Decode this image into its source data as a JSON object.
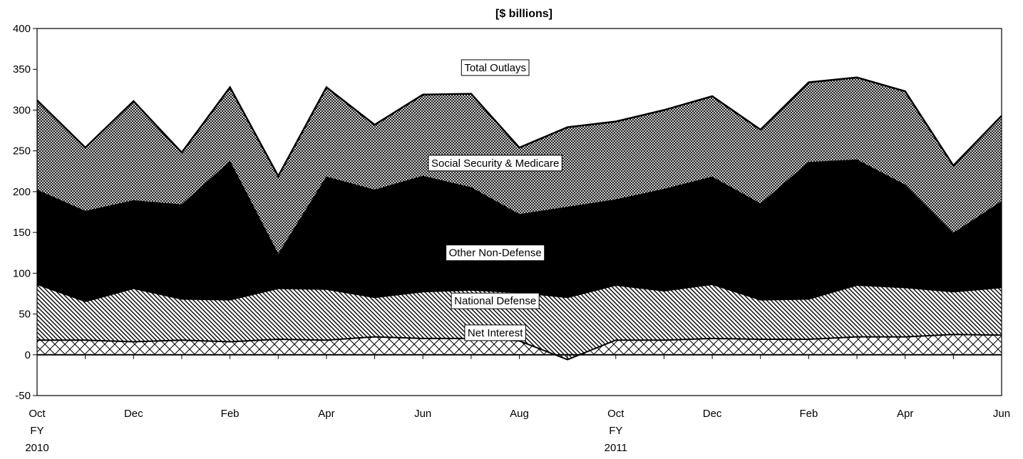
{
  "chart_data": {
    "type": "area",
    "stacked": true,
    "title": "[$ billions]",
    "xlabel": "",
    "ylabel": "",
    "ylim": [
      -50,
      400
    ],
    "yticks": [
      -50,
      0,
      50,
      100,
      150,
      200,
      250,
      300,
      350,
      400
    ],
    "ytick_labels": [
      "-50",
      "0",
      "50",
      "100",
      "150",
      "200",
      "250",
      "300",
      "350",
      "400"
    ],
    "grid": false,
    "legend": "none",
    "x": [
      "Oct 2009",
      "Nov 2009",
      "Dec 2009",
      "Jan 2010",
      "Feb 2010",
      "Mar 2010",
      "Apr 2010",
      "May 2010",
      "Jun 2010",
      "Jul 2010",
      "Aug 2010",
      "Sep 2010",
      "Oct 2010",
      "Nov 2010",
      "Dec 2010",
      "Jan 2011",
      "Feb 2011",
      "Mar 2011",
      "Apr 2011",
      "May 2011",
      "Jun 2011"
    ],
    "xtick_labels": [
      {
        "index": 0,
        "lines": [
          "Oct",
          "FY",
          "2010"
        ]
      },
      {
        "index": 2,
        "lines": [
          "Dec"
        ]
      },
      {
        "index": 4,
        "lines": [
          "Feb"
        ]
      },
      {
        "index": 6,
        "lines": [
          "Apr"
        ]
      },
      {
        "index": 8,
        "lines": [
          "Jun"
        ]
      },
      {
        "index": 10,
        "lines": [
          "Aug"
        ]
      },
      {
        "index": 12,
        "lines": [
          "Oct",
          "FY",
          "2011"
        ]
      },
      {
        "index": 14,
        "lines": [
          "Dec"
        ]
      },
      {
        "index": 16,
        "lines": [
          "Feb"
        ]
      },
      {
        "index": 18,
        "lines": [
          "Apr"
        ]
      },
      {
        "index": 20,
        "lines": [
          "Jun"
        ]
      }
    ],
    "series": [
      {
        "name": "Net Interest",
        "pattern": "crosshatch",
        "values": [
          18,
          18,
          16,
          18,
          16,
          19,
          18,
          22,
          20,
          20,
          17,
          -6,
          18,
          18,
          20,
          19,
          19,
          22,
          22,
          25,
          24
        ]
      },
      {
        "name": "National Defense",
        "pattern": "diagonal",
        "values": [
          68,
          47,
          65,
          50,
          51,
          62,
          62,
          48,
          57,
          59,
          59,
          76,
          67,
          60,
          66,
          48,
          49,
          63,
          60,
          52,
          58
        ]
      },
      {
        "name": "Other Non-Defense",
        "pattern": "solid",
        "values": [
          116,
          111,
          108,
          116,
          170,
          42,
          138,
          132,
          142,
          126,
          96,
          111,
          105,
          125,
          132,
          118,
          168,
          154,
          126,
          72,
          106
        ]
      },
      {
        "name": "Social Security & Medicare",
        "pattern": "dense-crosshatch",
        "values": [
          110,
          78,
          122,
          64,
          91,
          96,
          110,
          80,
          100,
          115,
          82,
          98,
          96,
          97,
          99,
          91,
          98,
          101,
          115,
          83,
          105
        ]
      }
    ],
    "total_line": {
      "name": "Total Outlays",
      "values": [
        312,
        254,
        311,
        248,
        328,
        219,
        328,
        282,
        319,
        320,
        254,
        279,
        286,
        300,
        317,
        276,
        334,
        340,
        323,
        232,
        293
      ]
    },
    "annotations": [
      {
        "text": "Total Outlays",
        "x_index": 9.5,
        "y": 352
      },
      {
        "text": "Social Security & Medicare",
        "x_index": 9.5,
        "y": 235
      },
      {
        "text": "Other Non-Defense",
        "x_index": 9.5,
        "y": 125
      },
      {
        "text": "National Defense",
        "x_index": 9.5,
        "y": 66
      },
      {
        "text": "Net Interest",
        "x_index": 9.5,
        "y": 27
      }
    ]
  }
}
